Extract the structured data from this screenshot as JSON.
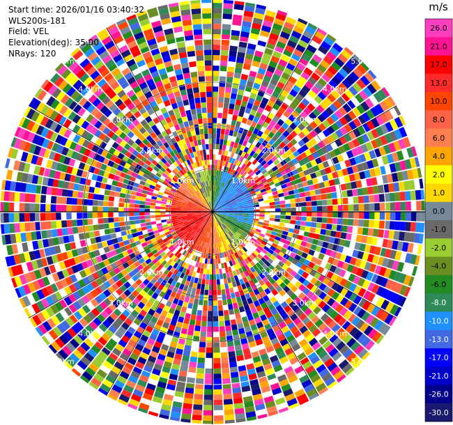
{
  "header": {
    "start_time": "Start time: 2026/01/16 03:40:32",
    "instrument": "WLS200s-181",
    "field": "Field: VEL",
    "elevation": "Elevation(deg): 35.00",
    "nrays": "NRays: 120"
  },
  "chart_data": {
    "type": "ppi-polar-scan",
    "field": "VEL",
    "unit": "m/s",
    "elevation_deg": 35.0,
    "n_rays": 120,
    "range_rings": [
      {
        "label": "1.0km"
      },
      {
        "label": "2.0km"
      },
      {
        "label": "3.0km"
      },
      {
        "label": "4.0km"
      },
      {
        "label": "5.0km"
      }
    ],
    "colorbar": {
      "ticks": [
        "26.0",
        "21.0",
        "17.0",
        "13.0",
        "10.0",
        "8.0",
        "6.0",
        "4.0",
        "2.0",
        "1.0",
        "0.0",
        "-1.0",
        "-2.0",
        "-4.0",
        "-6.0",
        "-8.0",
        "-10.0",
        "-13.0",
        "-17.0",
        "-21.0",
        "-26.0",
        "-30.0"
      ],
      "colors": [
        "#ff3fbf",
        "#ff1493",
        "#ff0000",
        "#ff2a2a",
        "#ff4500",
        "#ff6347",
        "#ff7f50",
        "#ffa500",
        "#ffff00",
        "#ffd700",
        "#778899",
        "#696969",
        "#9acd32",
        "#6b8e23",
        "#228b22",
        "#2e8b57",
        "#1e90ff",
        "#4169e1",
        "#0000ff",
        "#0000cd",
        "#00008b",
        "#191970"
      ]
    }
  }
}
